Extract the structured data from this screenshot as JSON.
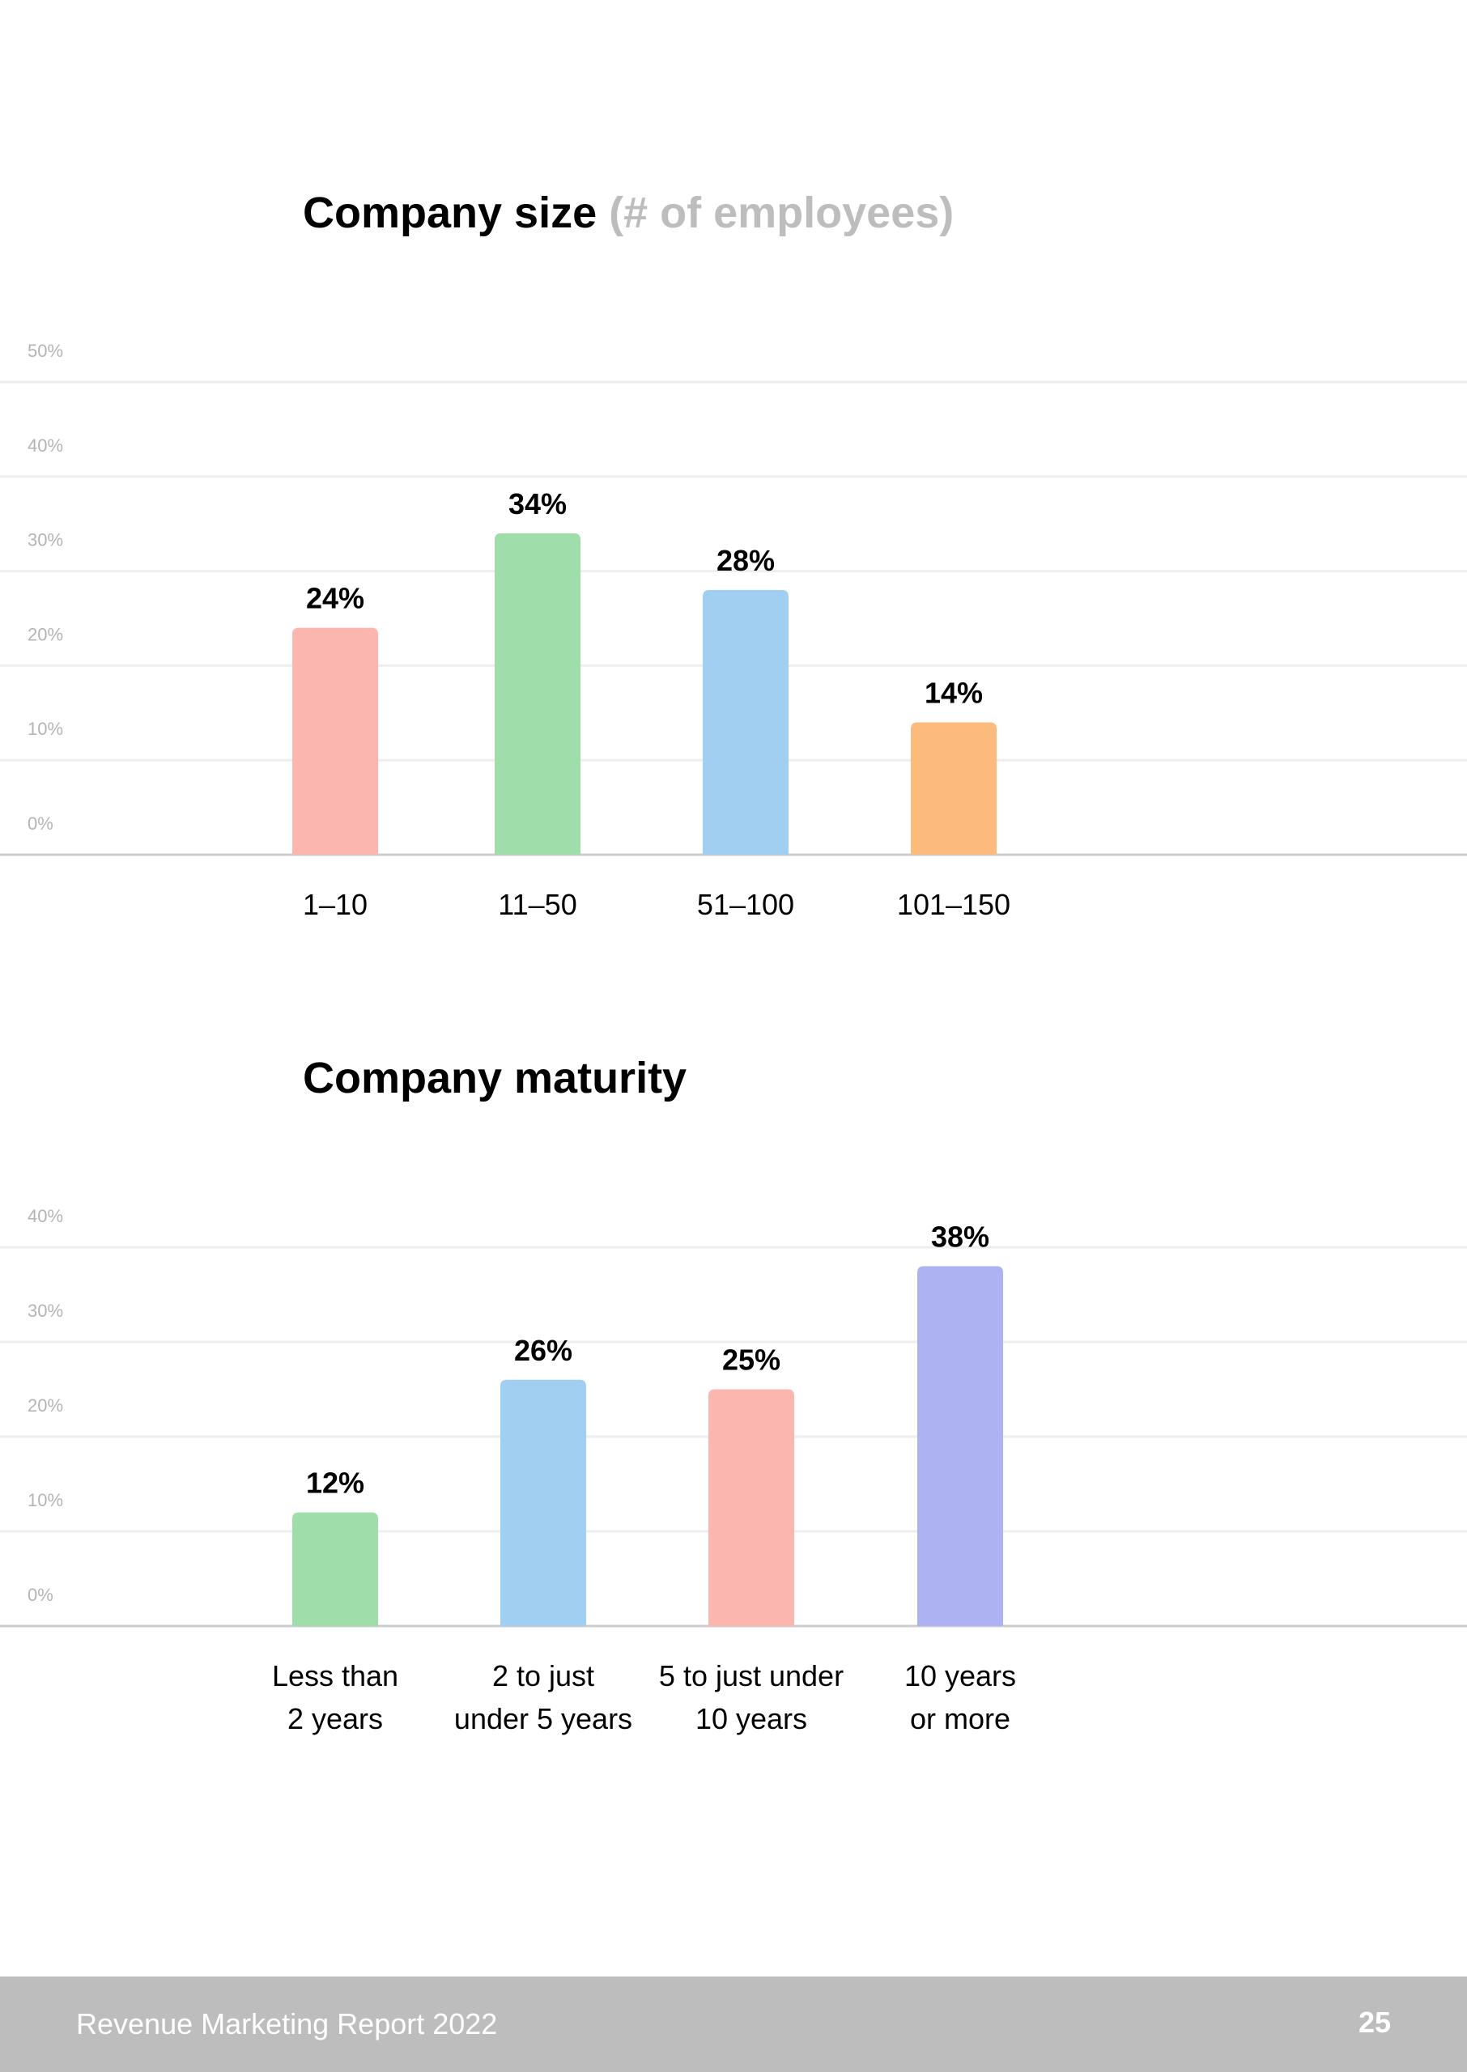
{
  "chart_data": [
    {
      "type": "bar",
      "title": "Company size",
      "subtitle": "(# of employees)",
      "categories": [
        "1–10",
        "11–50",
        "51–100",
        "101–150"
      ],
      "values": [
        24,
        34,
        28,
        14
      ],
      "data_labels": [
        "24%",
        "34%",
        "28%",
        "14%"
      ],
      "colors": [
        "#fbb6b0",
        "#9fddab",
        "#a0cff2",
        "#fcbb7c"
      ],
      "ylim": [
        0,
        50
      ],
      "yticks": [
        0,
        10,
        20,
        30,
        40,
        50
      ],
      "ytick_labels": [
        "0%",
        "10%",
        "20%",
        "30%",
        "40%",
        "50%"
      ],
      "grid": true,
      "xlabel": "",
      "ylabel": ""
    },
    {
      "type": "bar",
      "title": "Company maturity",
      "categories": [
        [
          "Less than",
          "2 years"
        ],
        [
          "2 to just",
          "under 5 years"
        ],
        [
          "5 to just under",
          "10 years"
        ],
        [
          "10 years",
          "or more"
        ]
      ],
      "values": [
        12,
        26,
        25,
        38
      ],
      "data_labels": [
        "12%",
        "26%",
        "25%",
        "38%"
      ],
      "colors": [
        "#9fddab",
        "#a0cff2",
        "#fbb6b0",
        "#adb2f2"
      ],
      "ylim": [
        0,
        40
      ],
      "yticks": [
        0,
        10,
        20,
        30,
        40
      ],
      "ytick_labels": [
        "0%",
        "10%",
        "20%",
        "30%",
        "40%"
      ],
      "grid": true,
      "xlabel": "",
      "ylabel": ""
    }
  ],
  "footer": {
    "report_title": "Revenue Marketing Report 2022",
    "page_number": "25"
  }
}
